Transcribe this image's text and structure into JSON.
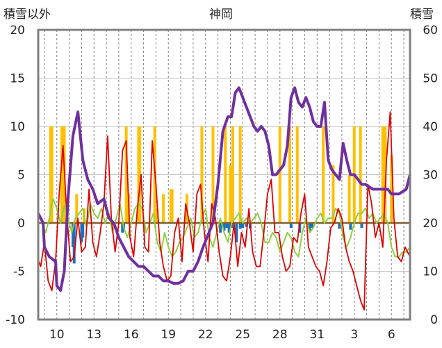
{
  "chart_data": {
    "type": "line",
    "title": "神岡",
    "ylabel_left": "積雪以外",
    "ylabel_right": "積雪",
    "ylim_left": [
      -10,
      20
    ],
    "ylim_right": [
      0,
      60
    ],
    "y_ticks_left": [
      "20",
      "15",
      "10",
      "5",
      "0",
      "-5",
      "-10"
    ],
    "y_ticks_right": [
      "60",
      "50",
      "40",
      "30",
      "20",
      "10",
      "0"
    ],
    "x_tick_labels": [
      "10",
      "13",
      "16",
      "19",
      "22",
      "25",
      "28",
      "31",
      "3",
      "6"
    ],
    "x_tick_days": [
      1,
      4,
      7,
      10,
      13,
      16,
      19,
      22,
      25,
      28
    ],
    "x_range_days": [
      -0.5,
      29.5
    ],
    "grid_vertical_dashed": true,
    "grid_horizontal": true,
    "colors": {
      "temperature": "#e00000",
      "temperature_range": "#8fce3f",
      "precipitation": "#ffc000",
      "negative_bars": "#1f6fc0",
      "snow_depth": "#7030a0",
      "zero_line": "#7f6030"
    },
    "series": [
      {
        "key": "temperature",
        "axis": "left",
        "x": [
          -0.5,
          -0.3,
          0.0,
          0.3,
          0.6,
          0.9,
          1.2,
          1.5,
          1.8,
          2.1,
          2.4,
          2.7,
          3.0,
          3.3,
          3.6,
          3.9,
          4.2,
          4.5,
          4.8,
          5.1,
          5.4,
          5.7,
          6.0,
          6.3,
          6.6,
          6.9,
          7.2,
          7.5,
          7.8,
          8.1,
          8.4,
          8.7,
          9.0,
          9.3,
          9.6,
          9.9,
          10.2,
          10.5,
          10.8,
          11.1,
          11.4,
          11.7,
          12.0,
          12.3,
          12.6,
          12.9,
          13.2,
          13.5,
          13.8,
          14.1,
          14.4,
          14.7,
          15.0,
          15.3,
          15.6,
          15.9,
          16.2,
          16.5,
          16.8,
          17.1,
          17.4,
          17.7,
          18.0,
          18.3,
          18.6,
          18.9,
          19.2,
          19.5,
          19.8,
          20.1,
          20.4,
          20.7,
          21.0,
          21.3,
          21.6,
          21.9,
          22.2,
          22.5,
          22.8,
          23.1,
          23.4,
          23.7,
          24.0,
          24.3,
          24.6,
          24.9,
          25.2,
          25.5,
          25.8,
          26.1,
          26.4,
          26.7,
          27.0,
          27.3,
          27.6,
          27.9,
          28.2,
          28.5,
          28.8,
          29.1,
          29.5
        ],
        "values": [
          -3.8,
          -4.5,
          -2.0,
          -6.0,
          -7.0,
          -4.0,
          3.2,
          8.0,
          1.0,
          -4.0,
          -3.5,
          0.5,
          -3.0,
          -2.5,
          3.5,
          -2.0,
          -3.5,
          -1.0,
          2.0,
          9.0,
          0.5,
          -3.0,
          0.0,
          7.5,
          8.5,
          -1.5,
          -3.5,
          1.5,
          5.0,
          -2.5,
          -3.0,
          8.5,
          4.0,
          -2.0,
          -4.5,
          -6.0,
          -5.5,
          -1.0,
          0.5,
          -4.0,
          2.0,
          0.0,
          -3.0,
          3.0,
          4.0,
          -1.0,
          -4.0,
          2.0,
          0.5,
          -3.0,
          -5.5,
          -6.0,
          -3.5,
          0.0,
          -4.5,
          -1.0,
          -2.5,
          1.5,
          -3.0,
          -4.5,
          -4.5,
          -1.0,
          3.0,
          4.5,
          -1.0,
          -1.0,
          -3.5,
          -5.0,
          -4.5,
          -1.5,
          -2.0,
          1.0,
          3.0,
          -2.5,
          -3.5,
          -4.5,
          -5.0,
          -6.5,
          -4.0,
          -0.5,
          0.0,
          1.5,
          0.5,
          -2.5,
          -4.0,
          -5.0,
          -6.5,
          -8.0,
          -9.0,
          4.0,
          2.0,
          -1.5,
          0.0,
          -2.5,
          6.5,
          11.5,
          0.5,
          -3.5,
          -4.0,
          -2.5,
          -3.5
        ]
      },
      {
        "key": "temperature_range",
        "axis": "left",
        "x": [
          -0.5,
          -0.2,
          0.1,
          0.4,
          0.7,
          1.0,
          1.3,
          1.6,
          1.9,
          2.2,
          2.5,
          2.8,
          3.1,
          3.4,
          3.7,
          4.0,
          4.3,
          4.6,
          4.9,
          5.2,
          5.5,
          5.8,
          6.1,
          6.4,
          6.7,
          7.0,
          7.3,
          7.6,
          7.9,
          8.2,
          8.5,
          8.8,
          9.1,
          9.4,
          9.7,
          10.0,
          10.3,
          10.6,
          10.9,
          11.2,
          11.5,
          11.8,
          12.1,
          12.4,
          12.7,
          13.0,
          13.3,
          13.6,
          13.9,
          14.2,
          14.5,
          14.8,
          15.1,
          15.4,
          15.7,
          16.0,
          16.3,
          16.6,
          16.9,
          17.2,
          17.5,
          17.8,
          18.1,
          18.4,
          18.7,
          19.0,
          19.3,
          19.6,
          19.9,
          20.2,
          20.5,
          20.8,
          21.1,
          21.4,
          21.7,
          22.0,
          22.3,
          22.6,
          22.9,
          23.2,
          23.5,
          23.8,
          24.1,
          24.4,
          24.7,
          25.0,
          25.3,
          25.6,
          25.9,
          26.2,
          26.5,
          26.8,
          27.1,
          27.4,
          27.7,
          28.0,
          28.3,
          28.6,
          28.9,
          29.2,
          29.5
        ],
        "values": [
          1.0,
          0.0,
          -1.0,
          0.5,
          2.5,
          1.5,
          0.0,
          1.8,
          0.5,
          -1.0,
          0.5,
          1.0,
          1.5,
          -0.5,
          2.0,
          1.0,
          0.5,
          1.5,
          0.0,
          1.0,
          -1.0,
          0.5,
          2.0,
          -0.5,
          -1.5,
          0.0,
          1.5,
          2.0,
          1.5,
          -1.0,
          0.0,
          1.0,
          -2.0,
          -3.0,
          -1.0,
          -2.5,
          -3.5,
          -3.0,
          -2.0,
          -1.5,
          -0.5,
          0.5,
          -1.5,
          -1.0,
          0.5,
          1.5,
          -1.5,
          -2.5,
          -1.0,
          0.5,
          -1.0,
          -2.0,
          0.0,
          0.5,
          1.0,
          0.0,
          0.5,
          0.0,
          0.5,
          1.0,
          0.0,
          -2.0,
          -2.0,
          -1.0,
          -1.5,
          -3.0,
          -2.0,
          -1.0,
          -1.5,
          -3.0,
          -3.5,
          -1.0,
          0.5,
          -1.0,
          -0.5,
          0.5,
          1.0,
          0.0,
          0.5,
          0.5,
          1.5,
          1.0,
          -1.5,
          -2.5,
          -1.5,
          0.0,
          1.0,
          1.0,
          1.5,
          0.5,
          1.0,
          0.0,
          0.5,
          1.0,
          0.0,
          -2.5,
          -3.5,
          -3.5,
          -3.0,
          -3.0,
          -2.5
        ]
      },
      {
        "key": "snow_depth",
        "axis": "right",
        "x": [
          -0.5,
          -0.1,
          0.0,
          0.4,
          0.9,
          1.0,
          1.3,
          1.6,
          1.9,
          2.3,
          2.7,
          3.1,
          3.5,
          3.9,
          4.3,
          4.8,
          5.2,
          5.6,
          6.0,
          6.4,
          6.8,
          7.2,
          7.6,
          8.0,
          8.4,
          8.8,
          9.2,
          9.6,
          10.0,
          10.4,
          10.8,
          11.2,
          11.6,
          12.0,
          12.4,
          12.8,
          13.2,
          13.6,
          14.0,
          14.4,
          14.8,
          15.1,
          15.4,
          15.7,
          16.0,
          16.3,
          16.6,
          16.9,
          17.2,
          17.5,
          17.8,
          18.1,
          18.4,
          18.7,
          19.0,
          19.3,
          19.6,
          19.9,
          20.2,
          20.5,
          20.8,
          21.1,
          21.4,
          21.7,
          22.0,
          22.3,
          22.6,
          22.9,
          23.2,
          23.5,
          23.8,
          24.1,
          24.4,
          24.7,
          25.0,
          25.3,
          25.6,
          25.9,
          26.2,
          26.5,
          26.8,
          27.1,
          27.4,
          27.7,
          28.0,
          28.3,
          28.6,
          28.9,
          29.2,
          29.5
        ],
        "values": [
          22.0,
          20.0,
          15.0,
          13.0,
          12.0,
          7.0,
          6.0,
          10.0,
          25.0,
          38.0,
          43.0,
          33.0,
          29.0,
          27.0,
          24.0,
          25.0,
          21.0,
          20.0,
          17.0,
          15.0,
          13.0,
          12.0,
          11.0,
          11.0,
          10.0,
          9.0,
          9.0,
          8.0,
          8.0,
          7.5,
          7.5,
          8.0,
          10.0,
          10.0,
          12.0,
          15.0,
          17.5,
          20.0,
          28.0,
          39.0,
          42.0,
          42.0,
          47.0,
          48.0,
          46.0,
          44.0,
          42.0,
          40.0,
          39.0,
          40.0,
          39.0,
          36.0,
          30.0,
          30.0,
          31.0,
          32.0,
          36.0,
          46.0,
          48.0,
          45.0,
          44.0,
          46.0,
          44.0,
          41.0,
          40.0,
          40.0,
          45.0,
          33.0,
          31.0,
          30.0,
          29.0,
          36.5,
          33.0,
          30.0,
          30.0,
          29.0,
          28.0,
          28.0,
          27.5,
          27.0,
          27.0,
          27.0,
          27.0,
          27.0,
          26.0,
          26.0,
          26.0,
          26.5,
          27.0,
          30.0
        ]
      }
    ],
    "bars": [
      {
        "key": "precipitation",
        "axis": "left",
        "x": [
          0.5,
          0.6,
          1.4,
          1.5,
          1.6,
          2.6,
          3.2,
          6.6,
          6.8,
          7.6,
          7.7,
          8.9,
          9.0,
          9.1,
          9.6,
          10.2,
          10.3,
          11.5,
          12.7,
          13.6,
          14.6,
          15.0,
          15.2,
          15.8,
          19.0,
          19.8,
          20.4,
          22.5,
          23.3,
          24.6,
          25.0,
          25.5,
          27.3,
          27.4,
          27.5,
          28.0
        ],
        "values": [
          10.0,
          10.0,
          10.0,
          10.0,
          10.0,
          3.0,
          1.5,
          10.0,
          3.0,
          10.0,
          10.0,
          10.0,
          1.0,
          1.5,
          3.0,
          3.5,
          3.5,
          3.0,
          10.0,
          10.0,
          10.0,
          6.0,
          10.0,
          10.0,
          10.0,
          10.0,
          10.0,
          10.0,
          6.0,
          5.0,
          10.0,
          10.0,
          10.0,
          1.5,
          10.0,
          7.0
        ]
      },
      {
        "key": "negative_bars",
        "axis": "left",
        "x": [
          2.3,
          2.4,
          3.0,
          3.1,
          6.3,
          6.4,
          14.2,
          14.5,
          14.7,
          14.9,
          15.1,
          15.5,
          15.8,
          16.0,
          16.3,
          16.6,
          19.9,
          20.6,
          21.4,
          21.6,
          23.8,
          24.7,
          25.6
        ],
        "values": [
          -2.5,
          -4.2,
          -2.0,
          -1.5,
          -1.0,
          -0.8,
          -1.0,
          -0.8,
          -0.5,
          -1.0,
          -0.5,
          -2.0,
          -0.6,
          -0.5,
          -0.4,
          -0.6,
          -0.5,
          -1.0,
          -0.8,
          -0.5,
          -0.6,
          -0.7,
          -0.5
        ]
      }
    ]
  }
}
